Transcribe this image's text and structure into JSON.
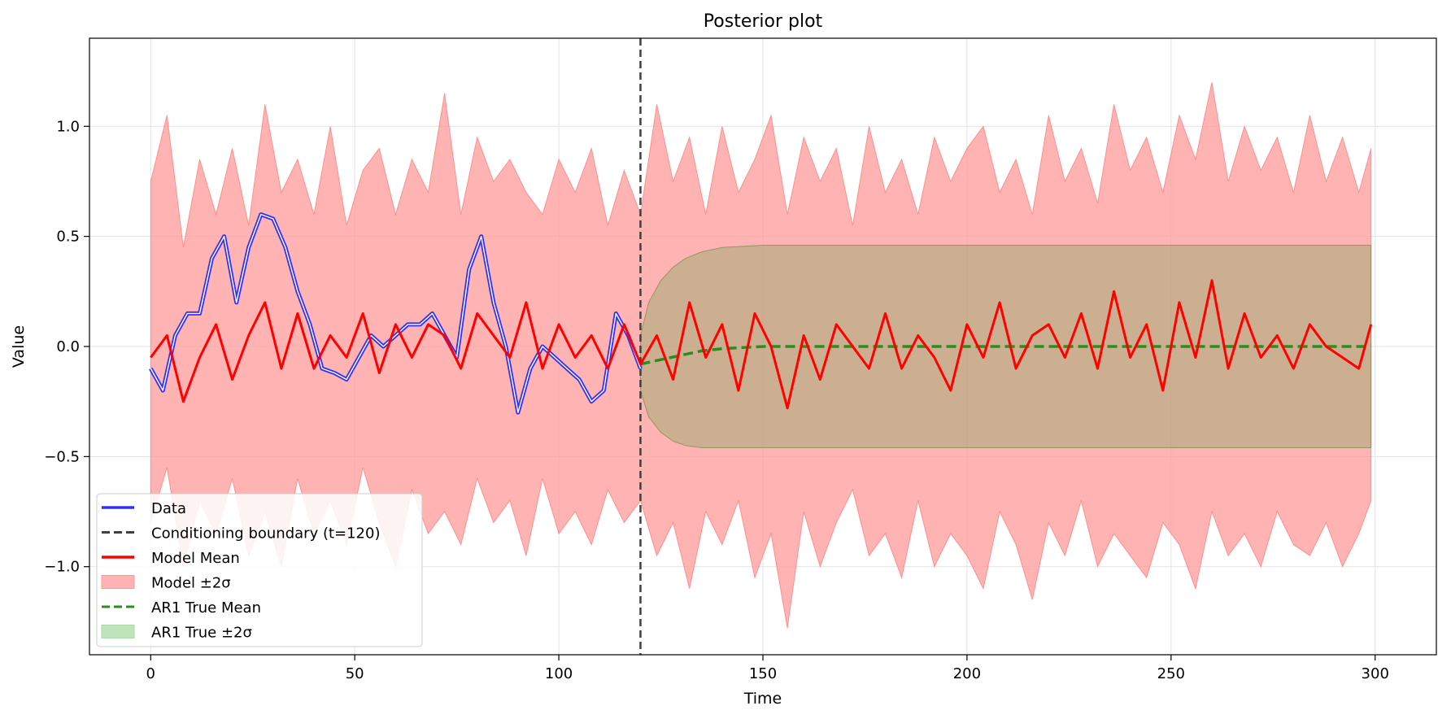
{
  "chart_data": {
    "type": "line",
    "title": "Posterior plot",
    "xlabel": "Time",
    "ylabel": "Value",
    "xlim": [
      -15,
      315
    ],
    "ylim": [
      -1.4,
      1.4
    ],
    "x_ticks": [
      0,
      50,
      100,
      150,
      200,
      250,
      300
    ],
    "x_tick_labels": [
      "0",
      "50",
      "100",
      "150",
      "200",
      "250",
      "300"
    ],
    "y_ticks": [
      -1.0,
      -0.5,
      0.0,
      0.5,
      1.0
    ],
    "y_tick_labels": [
      "−1.0",
      "−0.5",
      "0.0",
      "0.5",
      "1.0"
    ],
    "grid": true,
    "legend_position": "lower-left",
    "conditioning_boundary": 120,
    "colors": {
      "data": "#3333ee",
      "boundary": "#404040",
      "model_mean": "#ff0000",
      "model_band": "#ff9999",
      "ar1_mean": "#2e8b22",
      "ar1_band": "#a9d9a4"
    },
    "series": [
      {
        "name": "Data",
        "kind": "line",
        "x": [
          0,
          3,
          6,
          9,
          12,
          15,
          18,
          21,
          24,
          27,
          30,
          33,
          36,
          39,
          42,
          45,
          48,
          51,
          54,
          57,
          60,
          63,
          66,
          69,
          72,
          75,
          78,
          81,
          84,
          87,
          90,
          93,
          96,
          99,
          102,
          105,
          108,
          111,
          114,
          117,
          120
        ],
        "y": [
          -0.1,
          -0.2,
          0.05,
          0.15,
          0.15,
          0.4,
          0.5,
          0.2,
          0.45,
          0.6,
          0.58,
          0.45,
          0.25,
          0.1,
          -0.1,
          -0.12,
          -0.15,
          -0.05,
          0.05,
          0.0,
          0.05,
          0.1,
          0.1,
          0.15,
          0.05,
          -0.05,
          0.35,
          0.5,
          0.2,
          0.0,
          -0.3,
          -0.1,
          0.0,
          -0.05,
          -0.1,
          -0.15,
          -0.25,
          -0.2,
          0.15,
          0.05,
          -0.1
        ]
      },
      {
        "name": "Model Mean",
        "kind": "line",
        "x": [
          0,
          4,
          8,
          12,
          16,
          20,
          24,
          28,
          32,
          36,
          40,
          44,
          48,
          52,
          56,
          60,
          64,
          68,
          72,
          76,
          80,
          84,
          88,
          92,
          96,
          100,
          104,
          108,
          112,
          116,
          120,
          124,
          128,
          132,
          136,
          140,
          144,
          148,
          152,
          156,
          160,
          164,
          168,
          172,
          176,
          180,
          184,
          188,
          192,
          196,
          200,
          204,
          208,
          212,
          216,
          220,
          224,
          228,
          232,
          236,
          240,
          244,
          248,
          252,
          256,
          260,
          264,
          268,
          272,
          276,
          280,
          284,
          288,
          292,
          296,
          299
        ],
        "y": [
          -0.05,
          0.05,
          -0.25,
          -0.05,
          0.1,
          -0.15,
          0.05,
          0.2,
          -0.1,
          0.15,
          -0.1,
          0.05,
          -0.05,
          0.15,
          -0.12,
          0.1,
          -0.05,
          0.1,
          0.05,
          -0.1,
          0.15,
          0.05,
          -0.05,
          0.2,
          -0.1,
          0.1,
          -0.05,
          0.05,
          -0.1,
          0.1,
          -0.08,
          0.05,
          -0.15,
          0.2,
          -0.05,
          0.1,
          -0.2,
          0.15,
          0.0,
          -0.28,
          0.05,
          -0.15,
          0.1,
          0.0,
          -0.1,
          0.15,
          -0.1,
          0.05,
          -0.05,
          -0.2,
          0.1,
          -0.05,
          0.2,
          -0.1,
          0.05,
          0.1,
          -0.05,
          0.15,
          -0.1,
          0.25,
          -0.05,
          0.1,
          -0.2,
          0.2,
          -0.05,
          0.3,
          -0.1,
          0.15,
          -0.05,
          0.05,
          -0.1,
          0.1,
          0.0,
          -0.05,
          -0.1,
          0.1
        ]
      },
      {
        "name": "Model ±2σ",
        "kind": "band",
        "x": [
          0,
          4,
          8,
          12,
          16,
          20,
          24,
          28,
          32,
          36,
          40,
          44,
          48,
          52,
          56,
          60,
          64,
          68,
          72,
          76,
          80,
          84,
          88,
          92,
          96,
          100,
          104,
          108,
          112,
          116,
          120,
          124,
          128,
          132,
          136,
          140,
          144,
          148,
          152,
          156,
          160,
          164,
          168,
          172,
          176,
          180,
          184,
          188,
          192,
          196,
          200,
          204,
          208,
          212,
          216,
          220,
          224,
          228,
          232,
          236,
          240,
          244,
          248,
          252,
          256,
          260,
          264,
          268,
          272,
          276,
          280,
          284,
          288,
          292,
          296,
          299
        ],
        "upper": [
          0.75,
          1.05,
          0.45,
          0.85,
          0.6,
          0.9,
          0.55,
          1.1,
          0.7,
          0.85,
          0.6,
          1.0,
          0.55,
          0.8,
          0.9,
          0.6,
          0.85,
          0.7,
          1.15,
          0.6,
          0.95,
          0.75,
          0.85,
          0.7,
          0.6,
          0.85,
          0.7,
          0.9,
          0.55,
          0.8,
          0.6,
          1.1,
          0.75,
          0.95,
          0.6,
          1.0,
          0.7,
          0.85,
          1.05,
          0.6,
          0.95,
          0.75,
          0.9,
          0.55,
          1.0,
          0.7,
          0.85,
          0.6,
          0.95,
          0.75,
          0.9,
          1.0,
          0.7,
          0.85,
          0.6,
          1.05,
          0.75,
          0.9,
          0.65,
          1.1,
          0.8,
          0.95,
          0.7,
          1.05,
          0.85,
          1.2,
          0.75,
          1.0,
          0.8,
          0.95,
          0.7,
          1.05,
          0.75,
          0.95,
          0.7,
          0.9
        ],
        "lower": [
          -0.8,
          -0.55,
          -1.0,
          -0.7,
          -0.85,
          -0.6,
          -0.95,
          -0.75,
          -1.0,
          -0.6,
          -0.85,
          -0.7,
          -0.9,
          -0.55,
          -0.8,
          -1.0,
          -0.65,
          -0.85,
          -0.75,
          -0.9,
          -0.6,
          -0.8,
          -0.7,
          -0.95,
          -0.6,
          -0.85,
          -0.75,
          -0.9,
          -0.65,
          -0.8,
          -0.7,
          -0.95,
          -0.8,
          -1.1,
          -0.75,
          -0.9,
          -0.7,
          -1.05,
          -0.85,
          -1.28,
          -0.75,
          -1.0,
          -0.8,
          -0.65,
          -0.95,
          -0.85,
          -1.05,
          -0.7,
          -1.0,
          -0.85,
          -0.95,
          -1.1,
          -0.75,
          -0.9,
          -1.15,
          -0.8,
          -0.95,
          -0.7,
          -1.0,
          -0.85,
          -0.95,
          -1.05,
          -0.8,
          -0.9,
          -1.1,
          -0.75,
          -0.95,
          -0.85,
          -1.0,
          -0.75,
          -0.9,
          -0.95,
          -0.8,
          -1.0,
          -0.85,
          -0.7
        ]
      },
      {
        "name": "AR1 True Mean",
        "kind": "dashed-line",
        "x": [
          120,
          125,
          130,
          135,
          140,
          150,
          175,
          200,
          250,
          299
        ],
        "y": [
          -0.08,
          -0.06,
          -0.04,
          -0.02,
          -0.01,
          0.0,
          0.0,
          0.0,
          0.0,
          0.0
        ]
      },
      {
        "name": "AR1 True ±2σ",
        "kind": "band",
        "x": [
          120,
          122,
          125,
          128,
          131,
          135,
          140,
          150,
          175,
          200,
          250,
          299
        ],
        "upper": [
          0.05,
          0.2,
          0.3,
          0.36,
          0.4,
          0.43,
          0.45,
          0.46,
          0.46,
          0.46,
          0.46,
          0.46
        ],
        "lower": [
          -0.2,
          -0.32,
          -0.39,
          -0.43,
          -0.45,
          -0.46,
          -0.46,
          -0.46,
          -0.46,
          -0.46,
          -0.46,
          -0.46
        ]
      }
    ],
    "legend": [
      {
        "label": "Data",
        "kind": "line",
        "color": "#3333ee"
      },
      {
        "label": "Conditioning boundary (t=120)",
        "kind": "dashed",
        "color": "#404040"
      },
      {
        "label": "Model Mean",
        "kind": "line",
        "color": "#ff0000"
      },
      {
        "label": "Model ±2σ",
        "kind": "patch",
        "color": "#ff9999"
      },
      {
        "label": "AR1 True Mean",
        "kind": "dashed",
        "color": "#2e8b22"
      },
      {
        "label": "AR1 True ±2σ",
        "kind": "patch",
        "color": "#a9d9a4"
      }
    ]
  }
}
